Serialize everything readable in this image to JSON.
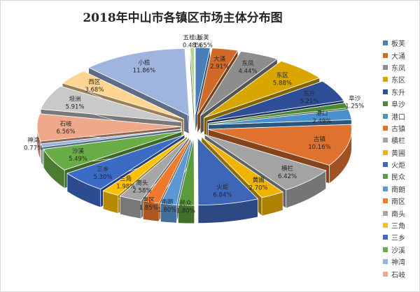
{
  "chart_data": {
    "type": "pie",
    "title": "2018年中山市各镇区市场主体分布图",
    "series": [
      {
        "name": "板芙",
        "value": 1.65,
        "label": "1.65%",
        "color": "#4a7eb8"
      },
      {
        "name": "大涌",
        "value": 2.91,
        "label": "2.91%",
        "color": "#cf6a28"
      },
      {
        "name": "东凤",
        "value": 4.44,
        "label": "4.44%",
        "color": "#8d8d8d"
      },
      {
        "name": "东区",
        "value": 5.88,
        "label": "5.88%",
        "color": "#d9a600"
      },
      {
        "name": "东升",
        "value": 5.21,
        "label": "5.21%",
        "color": "#2e4f97"
      },
      {
        "name": "阜沙",
        "value": 1.25,
        "label": "1.25%",
        "color": "#4b8a33"
      },
      {
        "name": "港口",
        "value": 2.49,
        "label": "2.49%",
        "color": "#4a90cf"
      },
      {
        "name": "古镇",
        "value": 10.16,
        "label": "10.16%",
        "color": "#e0722f"
      },
      {
        "name": "横栏",
        "value": 6.42,
        "label": "6.42%",
        "color": "#a3a3a3"
      },
      {
        "name": "黄圃",
        "value": 2.7,
        "label": "2.70%",
        "color": "#efb400"
      },
      {
        "name": "火炬",
        "value": 6.84,
        "label": "6.84%",
        "color": "#3d66b8"
      },
      {
        "name": "民众",
        "value": 1.8,
        "label": "1.80%",
        "color": "#5b9b3c"
      },
      {
        "name": "南朗",
        "value": 1.8,
        "label": "1.80%",
        "color": "#5b99d4"
      },
      {
        "name": "南区",
        "value": 1.85,
        "label": "1.85%",
        "color": "#ef7a2c"
      },
      {
        "name": "南头",
        "value": 2.58,
        "label": "2.58%",
        "color": "#a6a6a6"
      },
      {
        "name": "三角",
        "value": 1.98,
        "label": "1.98%",
        "color": "#ffc000"
      },
      {
        "name": "三乡",
        "value": 5.3,
        "label": "5.30%",
        "color": "#3c6bc6"
      },
      {
        "name": "沙溪",
        "value": 5.49,
        "label": "5.49%",
        "color": "#6aac46"
      },
      {
        "name": "神湾",
        "value": 0.77,
        "label": "0.77%",
        "color": "#8fb5e0"
      },
      {
        "name": "石岐",
        "value": 6.56,
        "label": "6.56%",
        "color": "#f0a88a"
      },
      {
        "name": "坦洲",
        "value": 5.91,
        "label": "5.91%",
        "color": "#c9c9c9"
      },
      {
        "name": "西区",
        "value": 3.68,
        "label": "3.68%",
        "color": "#ffd591"
      },
      {
        "name": "小榄",
        "value": 11.86,
        "label": "11.86%",
        "color": "#9fb4df"
      },
      {
        "name": "五桂山",
        "value": 0.48,
        "label": "0.48%",
        "color": "#b5d49c"
      }
    ],
    "legend": {
      "position": "right",
      "entries": [
        "板芙",
        "大涌",
        "东凤",
        "东区",
        "东升",
        "阜沙",
        "港口",
        "古镇",
        "横栏",
        "黄圃",
        "火炬",
        "民众",
        "南朗",
        "南区",
        "南头",
        "三角",
        "三乡",
        "沙溪",
        "神湾",
        "石岐"
      ]
    }
  }
}
